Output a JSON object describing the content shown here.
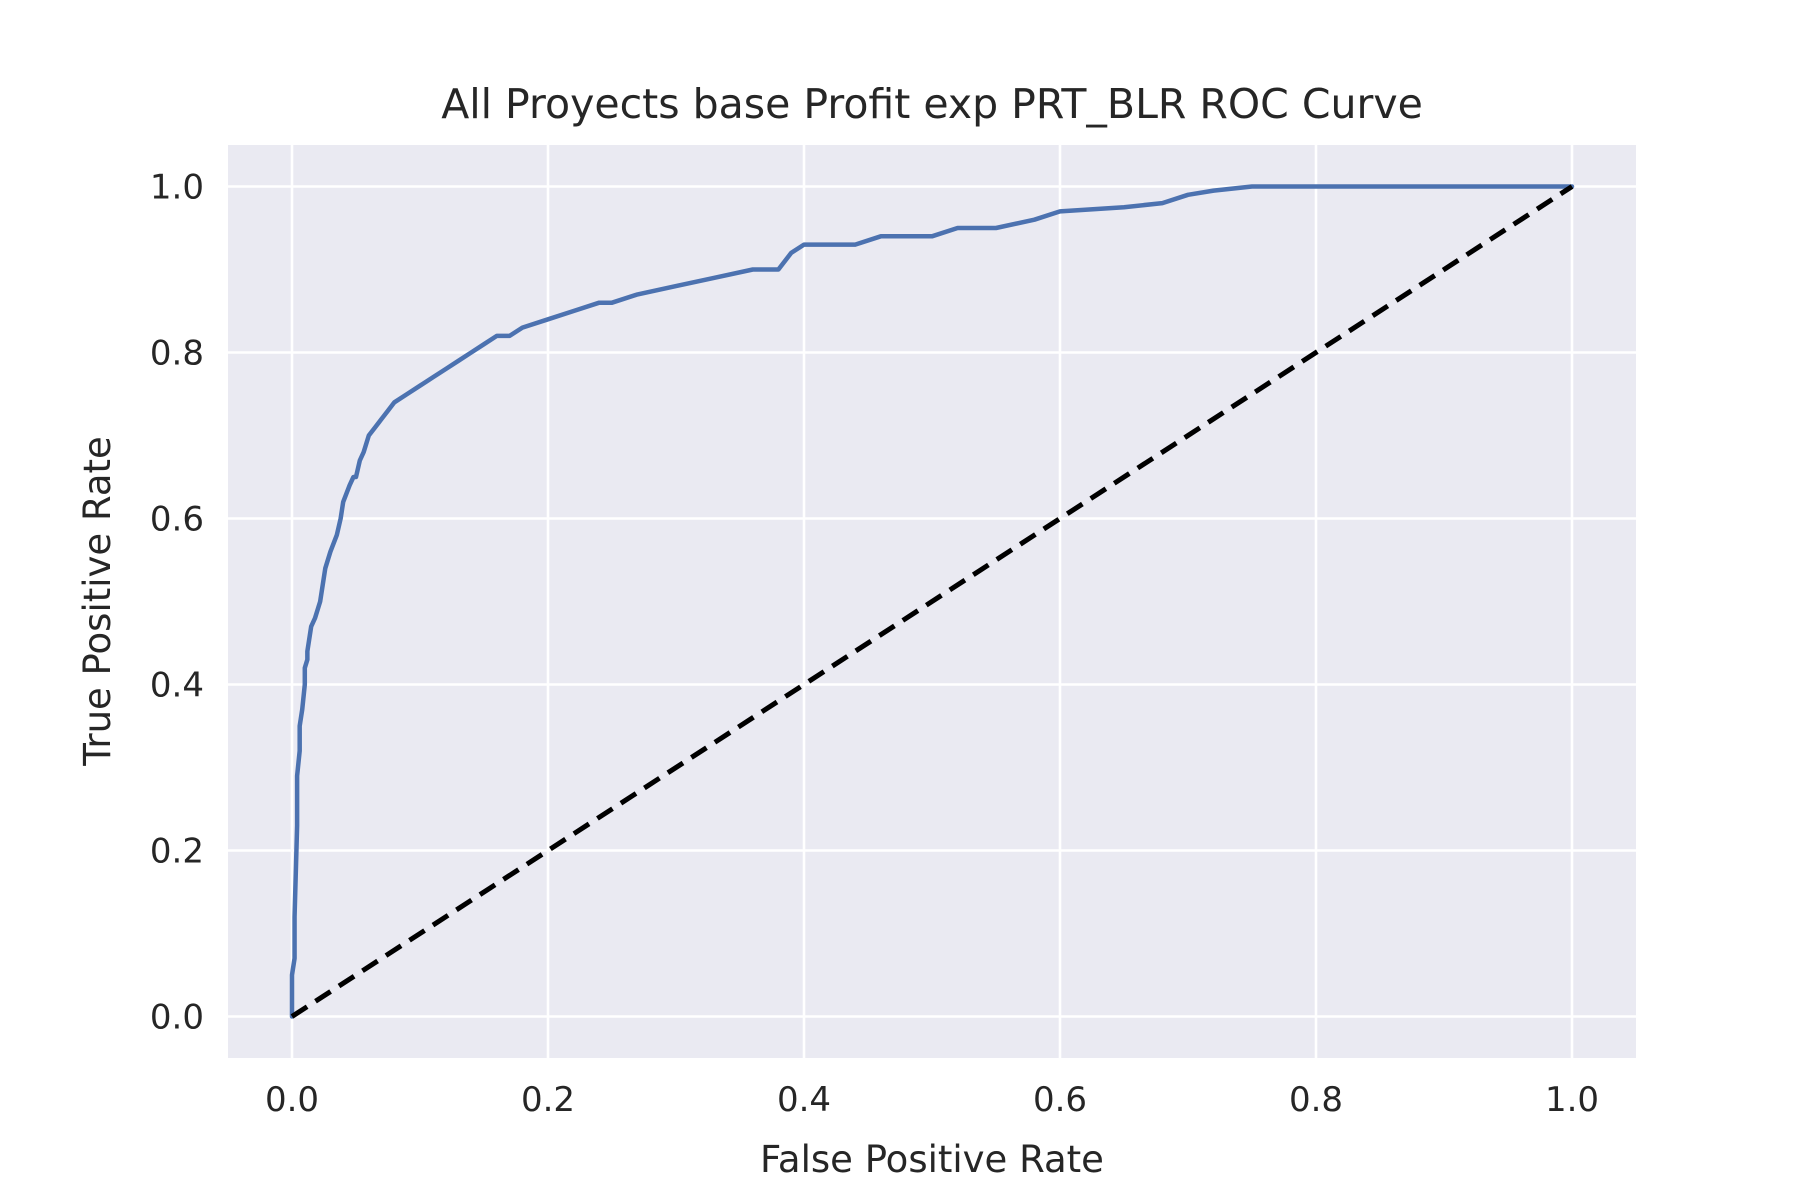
{
  "chart_data": {
    "type": "line",
    "title": "All Proyects base Profit exp PRT_BLR ROC Curve",
    "xlabel": "False Positive Rate",
    "ylabel": "True Positive Rate",
    "xlim": [
      -0.05,
      1.05
    ],
    "ylim": [
      -0.05,
      1.05
    ],
    "xticks": [
      0.0,
      0.2,
      0.4,
      0.6,
      0.8,
      1.0
    ],
    "yticks": [
      0.0,
      0.2,
      0.4,
      0.6,
      0.8,
      1.0
    ],
    "xtick_labels": [
      "0.0",
      "0.2",
      "0.4",
      "0.6",
      "0.8",
      "1.0"
    ],
    "ytick_labels": [
      "0.0",
      "0.2",
      "0.4",
      "0.6",
      "0.8",
      "1.0"
    ],
    "grid": true,
    "legend": "none",
    "colors": {
      "background": "#eaeaf2",
      "grid": "#ffffff",
      "roc": "#4c72b0",
      "diagonal": "#000000"
    },
    "series": [
      {
        "style": "solid",
        "color": "#4c72b0",
        "x": [
          0.0,
          0.0,
          0.002,
          0.002,
          0.004,
          0.004,
          0.006,
          0.006,
          0.008,
          0.01,
          0.01,
          0.012,
          0.012,
          0.015,
          0.018,
          0.022,
          0.026,
          0.03,
          0.035,
          0.038,
          0.04,
          0.045,
          0.048,
          0.05,
          0.053,
          0.056,
          0.06,
          0.065,
          0.07,
          0.075,
          0.08,
          0.09,
          0.1,
          0.11,
          0.12,
          0.13,
          0.14,
          0.15,
          0.16,
          0.17,
          0.18,
          0.2,
          0.22,
          0.24,
          0.25,
          0.27,
          0.3,
          0.33,
          0.36,
          0.38,
          0.39,
          0.4,
          0.42,
          0.44,
          0.46,
          0.5,
          0.52,
          0.55,
          0.58,
          0.6,
          0.65,
          0.68,
          0.7,
          0.72,
          0.75,
          0.77,
          0.85,
          1.0
        ],
        "y": [
          0.0,
          0.05,
          0.07,
          0.12,
          0.23,
          0.29,
          0.32,
          0.35,
          0.37,
          0.4,
          0.42,
          0.43,
          0.44,
          0.47,
          0.48,
          0.5,
          0.54,
          0.56,
          0.58,
          0.6,
          0.62,
          0.64,
          0.65,
          0.65,
          0.67,
          0.68,
          0.7,
          0.71,
          0.72,
          0.73,
          0.74,
          0.75,
          0.76,
          0.77,
          0.78,
          0.79,
          0.8,
          0.81,
          0.82,
          0.82,
          0.83,
          0.84,
          0.85,
          0.86,
          0.86,
          0.87,
          0.88,
          0.89,
          0.9,
          0.9,
          0.92,
          0.93,
          0.93,
          0.93,
          0.94,
          0.94,
          0.95,
          0.95,
          0.96,
          0.97,
          0.975,
          0.98,
          0.99,
          0.995,
          1.0,
          1.0,
          1.0,
          1.0
        ]
      },
      {
        "style": "dashed",
        "color": "#000000",
        "x": [
          0.0,
          1.0
        ],
        "y": [
          0.0,
          1.0
        ]
      }
    ]
  }
}
